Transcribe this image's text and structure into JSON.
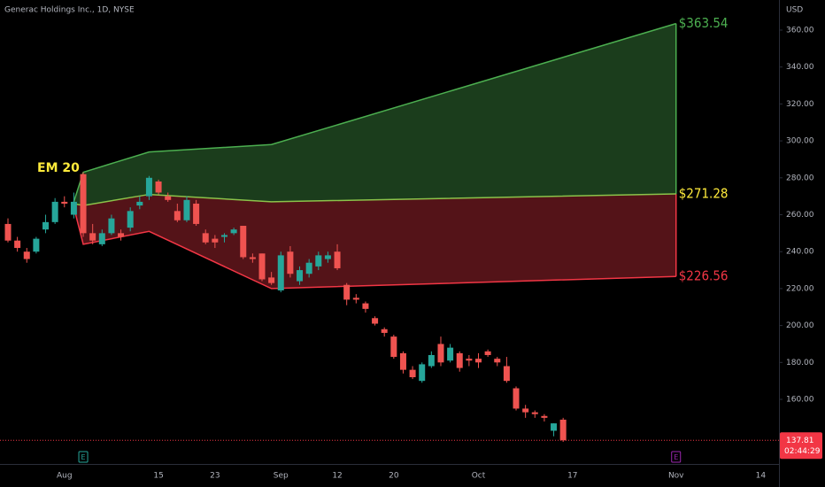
{
  "chart_data": {
    "type": "candlestick",
    "title": "Generac Holdings Inc., 1D, NYSE",
    "currency": "USD",
    "colors": {
      "up": "#26a69a",
      "down": "#ef5350"
    },
    "candles": {
      "open": [
        255,
        246,
        240,
        240,
        252,
        256,
        267,
        260,
        282,
        250,
        244,
        250,
        250,
        253,
        265,
        270,
        278,
        270,
        262,
        257,
        266,
        250,
        247,
        248,
        250,
        254,
        237,
        239,
        226,
        219,
        240,
        224,
        228,
        232,
        236,
        240,
        222,
        215,
        212,
        204,
        198,
        194,
        185,
        176,
        170,
        178,
        190,
        181,
        185,
        182,
        182,
        186,
        182,
        178,
        166,
        155,
        153,
        151,
        143,
        149
      ],
      "high": [
        258,
        248,
        242,
        248,
        260,
        269,
        270,
        272,
        283,
        255,
        252,
        260,
        252,
        264,
        270,
        281,
        279,
        272,
        266,
        270,
        268,
        252,
        249,
        250,
        253,
        254,
        239,
        239,
        229,
        240,
        243,
        232,
        236,
        240,
        240,
        244,
        223,
        217,
        213,
        205,
        199,
        195,
        186,
        178,
        180,
        186,
        194,
        190,
        186,
        184,
        185,
        187,
        183,
        183,
        167,
        157,
        154,
        152,
        147,
        150
      ],
      "low": [
        245,
        240,
        234,
        239,
        250,
        255,
        264,
        258,
        248,
        244,
        243,
        249,
        246,
        251,
        263,
        268,
        271,
        267,
        256,
        256,
        254,
        244,
        242,
        245,
        249,
        236,
        234,
        224,
        222,
        218,
        226,
        222,
        226,
        230,
        234,
        230,
        211,
        212,
        207,
        200,
        194,
        182,
        174,
        171,
        169,
        177,
        178,
        180,
        175,
        178,
        177,
        183,
        178,
        169,
        154,
        150,
        150,
        148,
        140,
        137
      ],
      "close": [
        246,
        242,
        236,
        247,
        256,
        267,
        266,
        267,
        250,
        246,
        250,
        258,
        248,
        262,
        267,
        280,
        272,
        268,
        257,
        268,
        255,
        245,
        245,
        249,
        252,
        237,
        236,
        225,
        223,
        238,
        228,
        230,
        234,
        238,
        238,
        231,
        214,
        214,
        209,
        201,
        196,
        183,
        176,
        172,
        179,
        184,
        180,
        188,
        177,
        181,
        180,
        184,
        180,
        170,
        155,
        153,
        152,
        150,
        147,
        137.81
      ]
    },
    "xticks": [
      {
        "value": 6,
        "label": "Aug"
      },
      {
        "value": 16,
        "label": "15"
      },
      {
        "value": 22,
        "label": "23"
      },
      {
        "value": 29,
        "label": "Sep"
      },
      {
        "value": 35,
        "label": "12"
      },
      {
        "value": 41,
        "label": "20"
      },
      {
        "value": 50,
        "label": "Oct"
      },
      {
        "value": 60,
        "label": "17"
      },
      {
        "value": 71,
        "label": "Nov"
      },
      {
        "value": 80,
        "label": "14"
      }
    ],
    "ylim": [
      125,
      376.3
    ],
    "yticks": [
      {
        "value": 160,
        "label": "160.00"
      },
      {
        "value": 180,
        "label": "180.00"
      },
      {
        "value": 200,
        "label": "200.00"
      },
      {
        "value": 220,
        "label": "220.00"
      },
      {
        "value": 240,
        "label": "240.00"
      },
      {
        "value": 260,
        "label": "260.00"
      },
      {
        "value": 280,
        "label": "280.00"
      },
      {
        "value": 300,
        "label": "300.00"
      },
      {
        "value": 320,
        "label": "320.00"
      },
      {
        "value": 340,
        "label": "340.00"
      },
      {
        "value": 360,
        "label": "360.00"
      }
    ],
    "last_price": 137.81,
    "countdown": "02:44:29",
    "bands": {
      "annotation": "EM 20",
      "x": [
        7,
        8,
        15,
        28,
        71
      ],
      "upper": [
        267,
        283,
        294,
        298,
        363.54
      ],
      "middle": [
        266,
        265,
        271,
        267,
        271.28
      ],
      "lower": [
        264,
        244,
        251,
        220,
        226.56
      ],
      "labels": [
        {
          "value": 363.54,
          "label": "$363.54",
          "color": "#4caf50"
        },
        {
          "value": 271.28,
          "label": "$271.28",
          "color": "#ffeb3b"
        },
        {
          "value": 226.56,
          "label": "$226.56",
          "color": "#f23645"
        }
      ]
    },
    "events": [
      {
        "x": 8,
        "label": "E",
        "color": "#26a69a"
      },
      {
        "x": 71,
        "label": "E",
        "color": "#9c27b0"
      }
    ]
  }
}
